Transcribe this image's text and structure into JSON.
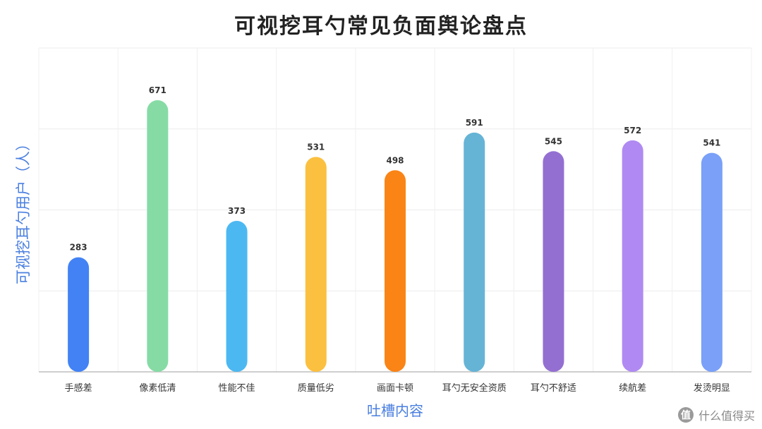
{
  "chart_data": {
    "type": "bar",
    "title": "可视挖耳勺常见负面舆论盘点",
    "xlabel": "吐槽内容",
    "ylabel": "可视挖耳勺用户（人）",
    "categories": [
      "手感差",
      "像素低清",
      "性能不佳",
      "质量低劣",
      "画面卡顿",
      "耳勺无安全资质",
      "耳勺不舒适",
      "续航差",
      "发烫明显"
    ],
    "values": [
      283,
      671,
      373,
      531,
      498,
      591,
      545,
      572,
      541
    ],
    "colors": [
      "#4282f5",
      "#86dba5",
      "#4cb8f2",
      "#fcc040",
      "#fa8416",
      "#65b4d6",
      "#946fd2",
      "#b08af2",
      "#7aa0f8"
    ],
    "ylim": [
      0,
      800
    ],
    "grid": true,
    "legend": "none"
  },
  "watermark": {
    "icon": "zhihu-value-icon",
    "text": "什么值得买"
  }
}
